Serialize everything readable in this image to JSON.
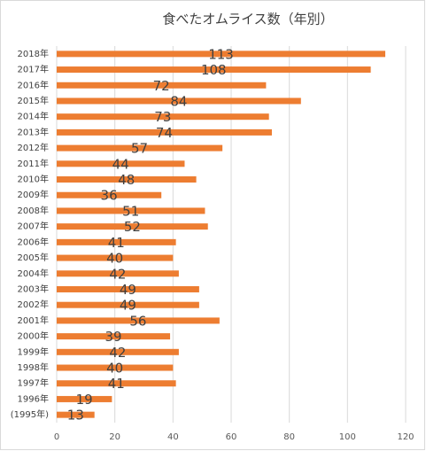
{
  "chart_data": {
    "type": "hbar",
    "title": "食べたオムライス数（年別）",
    "categories": [
      "2018年",
      "2017年",
      "2016年",
      "2015年",
      "2014年",
      "2013年",
      "2012年",
      "2011年",
      "2010年",
      "2009年",
      "2008年",
      "2007年",
      "2006年",
      "2005年",
      "2004年",
      "2003年",
      "2002年",
      "2001年",
      "2000年",
      "1999年",
      "1998年",
      "1997年",
      "1996年",
      "(1995年)"
    ],
    "values": [
      113,
      108,
      72,
      84,
      73,
      74,
      57,
      44,
      48,
      36,
      51,
      52,
      41,
      40,
      42,
      49,
      49,
      56,
      39,
      42,
      40,
      41,
      19,
      13
    ],
    "color": "#ed7d31",
    "xlim": [
      0,
      120
    ],
    "xticks": [
      0,
      20,
      40,
      60,
      80,
      100,
      120
    ],
    "grid": true
  }
}
